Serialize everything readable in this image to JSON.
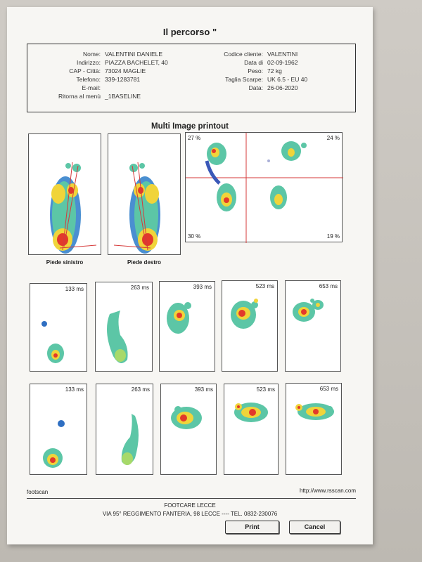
{
  "document": {
    "title": "Il percorso \"",
    "section_title": "Multi Image printout"
  },
  "patient": {
    "labels": {
      "name": "Nome:",
      "address": "Indirizzo:",
      "city": "CAP - Città:",
      "phone": "Telefono:",
      "email": "E-mail:",
      "menu": "Ritorna al menù"
    },
    "values": {
      "name": "VALENTINI DANIELE",
      "address": "PIAZZA BACHELET, 40",
      "city": "73024 MAGLIE",
      "phone": "339-1283781",
      "email": "",
      "menu": "_1BASELINE"
    }
  },
  "client": {
    "labels": {
      "code": "Codice cliente:",
      "birth": "Data di",
      "weight": "Peso:",
      "shoe": "Taglia Scarpe:",
      "date": "Data:"
    },
    "values": {
      "code": "VALENTINI",
      "birth": "02-09-1962",
      "weight": "72 kg",
      "shoe": "UK 6.5 - EU 40",
      "date": "26-06-2020"
    }
  },
  "captions": {
    "left": "Piede sinistro",
    "right": "Piede destro"
  },
  "balance": {
    "top_left": "27 %",
    "top_right": "24 %",
    "bottom_left": "30 %",
    "bottom_right": "19 %"
  },
  "timeline_row1": [
    "133 ms",
    "263 ms",
    "393 ms",
    "523 ms",
    "653 ms"
  ],
  "timeline_row2": [
    "133 ms",
    "263 ms",
    "393 ms",
    "523 ms",
    "653 ms"
  ],
  "footer": {
    "brand": "footscan",
    "url": "http://www.rsscan.com",
    "company": "FOOTCARE LECCE",
    "address": "VIA 95° REGGIMENTO FANTERIA, 98 LECCE ---- TEL. 0832-230076"
  },
  "buttons": {
    "print": "Print",
    "cancel": "Cancel"
  },
  "colors": {
    "heat_low": "#2f6fc2",
    "heat_mid": "#5cc6a6",
    "heat_high": "#f0d43a",
    "heat_peak": "#e2392b"
  }
}
